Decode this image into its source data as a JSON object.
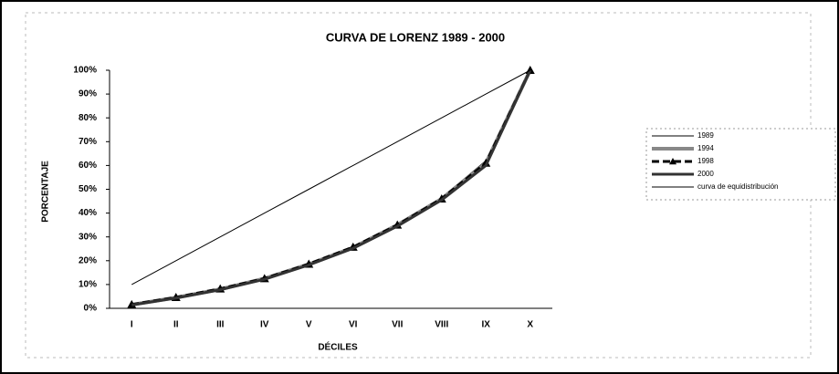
{
  "chart_data": {
    "type": "line",
    "title": "CURVA DE LORENZ 1989 - 2000",
    "x_label": "DÉCILES",
    "y_label": "PORCENTAJE",
    "categories": [
      "I",
      "II",
      "III",
      "IV",
      "V",
      "VI",
      "VII",
      "VIII",
      "IX",
      "X"
    ],
    "ylim": [
      0,
      100
    ],
    "yticks": [
      {
        "value": 0,
        "label": "0%"
      },
      {
        "value": 10,
        "label": "10%"
      },
      {
        "value": 20,
        "label": "20%"
      },
      {
        "value": 30,
        "label": "30%"
      },
      {
        "value": 40,
        "label": "40%"
      },
      {
        "value": 50,
        "label": "50%"
      },
      {
        "value": 60,
        "label": "60%"
      },
      {
        "value": 70,
        "label": "70%"
      },
      {
        "value": 80,
        "label": "80%"
      },
      {
        "value": 90,
        "label": "90%"
      },
      {
        "value": 100,
        "label": "100%"
      }
    ],
    "grid": false,
    "legend": "right",
    "series": [
      {
        "name": "1989",
        "color": "#000000",
        "width": 1,
        "values": [
          1.8,
          4.8,
          8.5,
          13,
          19,
          26,
          35.5,
          46.5,
          62,
          100
        ]
      },
      {
        "name": "1994",
        "color": "#888888",
        "width": 4,
        "values": [
          1.5,
          4.5,
          8,
          12.5,
          18.5,
          25.5,
          35,
          46,
          61,
          100
        ]
      },
      {
        "name": "1998",
        "color": "#000000",
        "width": 3,
        "dash": true,
        "marker": "triangle",
        "values": [
          1.6,
          4.6,
          8.2,
          12.5,
          18.6,
          25.7,
          35,
          46,
          61,
          100
        ]
      },
      {
        "name": "2000",
        "color": "#333333",
        "width": 3,
        "values": [
          1.4,
          4.3,
          7.8,
          12.2,
          18.2,
          25.2,
          34.5,
          45.5,
          60,
          100
        ]
      },
      {
        "name": "curva de equidistribución",
        "color": "#000000",
        "width": 1,
        "values": [
          10,
          20,
          30,
          40,
          50,
          60,
          70,
          80,
          90,
          100
        ]
      }
    ]
  }
}
